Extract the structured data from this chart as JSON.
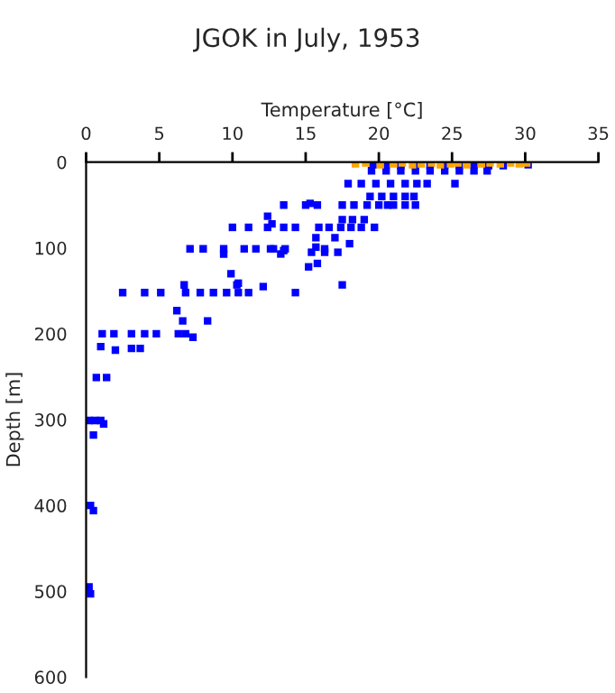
{
  "chart_data": {
    "type": "scatter",
    "title": "JGOK in July, 1953",
    "xlabel": "Temperature [°C]",
    "ylabel": "Depth [m]",
    "xlim": [
      0,
      35
    ],
    "xticks": [
      0,
      5,
      10,
      15,
      20,
      25,
      30,
      35
    ],
    "ylim": [
      600,
      0
    ],
    "yticks": [
      0,
      100,
      200,
      300,
      400,
      500,
      600
    ],
    "marker": "square",
    "grid": false,
    "legend": false,
    "series": [
      {
        "color": "#0000ff",
        "x": [
          19.6,
          20.5,
          21.5,
          22.5,
          23.5,
          24.5,
          25.5,
          26.5,
          27.5,
          28.5,
          30.2,
          19.5,
          20.5,
          21.5,
          22.5,
          23.5,
          24.5,
          25.5,
          26.5,
          27.4,
          17.9,
          18.8,
          19.8,
          20.8,
          21.8,
          22.6,
          23.3,
          25.2,
          19.4,
          20.2,
          21,
          21.8,
          22.4,
          13.5,
          15.0,
          15.3,
          15.8,
          17.5,
          18.3,
          19.2,
          20.0,
          20.6,
          21.0,
          21.8,
          22.5,
          12.4,
          17.5,
          18.2,
          19.0,
          12.7,
          10.0,
          11.1,
          12.4,
          13.5,
          14.3,
          15.9,
          16.6,
          17.4,
          18.1,
          18.8,
          19.7,
          15.7,
          17.0,
          18.0,
          7.1,
          8.0,
          9.4,
          10.8,
          11.6,
          12.6,
          13.6,
          15.7,
          16.3,
          12.8,
          13.5,
          15.4,
          16.3,
          17.2,
          9.4,
          13.3,
          15.8,
          15.2,
          9.9,
          10.4,
          10.3,
          6.7,
          12.1,
          17.5,
          2.5,
          4.0,
          5.1,
          6.8,
          7.8,
          8.7,
          9.6,
          10.4,
          11.1,
          14.3,
          6.2,
          6.6,
          8.3,
          1.1,
          1.9,
          3.1,
          4.0,
          4.8,
          6.3,
          6.8,
          7.3,
          1.0,
          3.1,
          3.7,
          2.0,
          0.7,
          1.4,
          0.2,
          0.6,
          1.0,
          1.2,
          0.5,
          0.3,
          0.5,
          0.2,
          0.3
        ],
        "values": [
          3,
          3,
          4,
          3,
          4,
          3,
          4,
          3,
          4,
          4,
          3,
          10,
          10,
          10,
          10,
          10,
          10,
          10,
          10,
          10,
          25,
          25,
          25,
          25,
          25,
          25,
          25,
          25,
          40,
          40,
          40,
          40,
          40,
          50,
          50,
          48,
          50,
          50,
          50,
          50,
          50,
          50,
          50,
          50,
          50,
          63,
          67,
          67,
          67,
          72,
          76,
          76,
          76,
          76,
          76,
          76,
          76,
          76,
          76,
          76,
          76,
          88,
          88,
          95,
          101,
          101,
          101,
          101,
          101,
          101,
          101,
          99,
          101,
          101,
          103,
          105,
          105,
          105,
          107,
          107,
          118,
          122,
          130,
          141,
          143,
          143,
          145,
          143,
          152,
          152,
          152,
          152,
          152,
          152,
          152,
          152,
          152,
          152,
          173,
          185,
          185,
          200,
          200,
          200,
          200,
          200,
          200,
          200,
          204,
          215,
          217,
          217,
          219,
          251,
          251,
          301,
          301,
          301,
          305,
          318,
          400,
          406,
          495,
          503
        ]
      },
      {
        "color": "#ffa500",
        "x": [
          18.4,
          19.1,
          20.1,
          21,
          21.6,
          22.3,
          22.9,
          23.6,
          24.2,
          24.9,
          25.4,
          26,
          27,
          27.6,
          28.3,
          29,
          29.6,
          30.1
        ],
        "values": [
          2,
          1,
          3,
          2,
          1,
          3,
          2,
          1,
          3,
          2,
          1,
          3,
          2,
          1,
          2,
          1,
          2,
          1
        ]
      }
    ]
  }
}
